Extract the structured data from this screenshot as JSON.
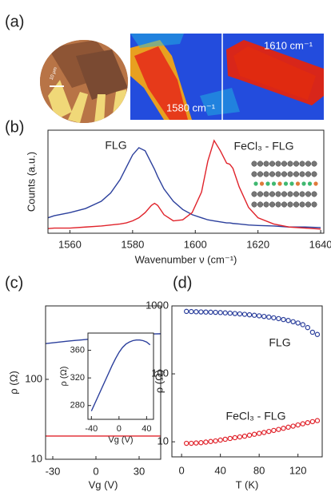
{
  "panel_labels": [
    "(a)",
    "(b)",
    "(c)",
    "(d)"
  ],
  "panel_a": {
    "scale_bar": "10 μm",
    "map_labels": [
      "1580 cm⁻¹",
      "1610 cm⁻¹"
    ]
  },
  "chart_data": [
    {
      "type": "line",
      "xlabel": "Wavenumber ν (cm⁻¹)",
      "ylabel": "Counts (a.u.)",
      "xlim": [
        1553,
        1641
      ],
      "xticks": [
        1560,
        1580,
        1600,
        1620,
        1640
      ],
      "ylim": [
        0,
        1
      ],
      "x": [
        1553,
        1555,
        1560,
        1565,
        1570,
        1573,
        1576,
        1578,
        1580,
        1582,
        1584,
        1586,
        1587,
        1588,
        1590,
        1593,
        1596,
        1599,
        1602,
        1604,
        1606,
        1608,
        1610,
        1611,
        1612,
        1614,
        1617,
        1620,
        1625,
        1630,
        1635,
        1640
      ],
      "series": [
        {
          "name": "FLG",
          "color": "#2b3f9c",
          "values": [
            0.15,
            0.17,
            0.2,
            0.24,
            0.31,
            0.39,
            0.52,
            0.64,
            0.76,
            0.83,
            0.8,
            0.68,
            0.62,
            0.55,
            0.43,
            0.31,
            0.23,
            0.18,
            0.15,
            0.13,
            0.12,
            0.11,
            0.1,
            0.1,
            0.095,
            0.09,
            0.08,
            0.075,
            0.07,
            0.06,
            0.06,
            0.055
          ]
        },
        {
          "name": "FeCl₃ - FLG",
          "color": "#e0232b",
          "values": [
            0.045,
            0.05,
            0.05,
            0.06,
            0.07,
            0.08,
            0.09,
            0.1,
            0.12,
            0.15,
            0.2,
            0.27,
            0.29,
            0.27,
            0.18,
            0.12,
            0.13,
            0.2,
            0.4,
            0.7,
            0.9,
            0.8,
            0.68,
            0.67,
            0.63,
            0.45,
            0.25,
            0.15,
            0.09,
            0.06,
            0.05,
            0.04
          ]
        }
      ]
    },
    {
      "type": "line",
      "log_y": true,
      "xlabel": "Vg (V)",
      "ylabel": "ρ (Ω)",
      "xlim": [
        -35,
        45
      ],
      "xticks": [
        -30,
        0,
        30
      ],
      "ylim": [
        10,
        830
      ],
      "yticks": [
        10,
        100
      ],
      "x": [
        -35,
        -30,
        -25,
        -20,
        -15,
        -10,
        -5,
        0,
        5,
        10,
        15,
        20,
        25,
        30,
        35,
        40,
        45
      ],
      "series": [
        {
          "color": "#2b3f9c",
          "values": [
            280,
            287,
            293,
            300,
            306,
            312,
            318,
            324,
            330,
            336,
            342,
            348,
            354,
            360,
            366,
            370,
            372
          ]
        },
        {
          "color": "#e0232b",
          "values": [
            19.5,
            19.5,
            19.5,
            19.5,
            19.5,
            19.5,
            19.5,
            19.5,
            19.5,
            19.5,
            19.5,
            19.5,
            19.5,
            19.5,
            19.5,
            19.5,
            19.5
          ]
        }
      ]
    },
    {
      "type": "line",
      "xlabel": "Vg (V)",
      "ylabel": "ρ (Ω)",
      "xlim": [
        -45,
        50
      ],
      "xticks": [
        -40,
        0,
        40
      ],
      "ylim": [
        260,
        385
      ],
      "yticks": [
        280,
        320,
        360
      ],
      "x": [
        -40,
        -35,
        -30,
        -25,
        -20,
        -15,
        -10,
        -5,
        0,
        5,
        10,
        15,
        20,
        25,
        30,
        35,
        40,
        45
      ],
      "series": [
        {
          "color": "#2b3f9c",
          "values": [
            272,
            283,
            294,
            305,
            316,
            327,
            338,
            348,
            357,
            364,
            369,
            372,
            374,
            375,
            375,
            374,
            372,
            368
          ]
        }
      ]
    },
    {
      "type": "scatter",
      "log_y": true,
      "xlabel": "T (K)",
      "ylabel": "ρ (Ω)",
      "xlim": [
        -10,
        145
      ],
      "xticks": [
        0,
        40,
        80,
        120
      ],
      "ylim": [
        6,
        1000
      ],
      "yticks": [
        10,
        100,
        1000
      ],
      "x": [
        5,
        10,
        15,
        20,
        25,
        30,
        35,
        40,
        45,
        50,
        55,
        60,
        65,
        70,
        75,
        80,
        85,
        90,
        95,
        100,
        105,
        110,
        115,
        120,
        125,
        130,
        135,
        140
      ],
      "series": [
        {
          "name": "FLG",
          "color": "#2b3f9c",
          "values": [
            830,
            825,
            820,
            815,
            812,
            808,
            804,
            798,
            790,
            782,
            772,
            762,
            752,
            740,
            728,
            715,
            700,
            685,
            668,
            650,
            630,
            610,
            585,
            560,
            530,
            480,
            410,
            380
          ]
        },
        {
          "name": "FeCl₃ - FLG",
          "color": "#e0232b",
          "values": [
            9.5,
            9.5,
            9.6,
            9.7,
            9.9,
            10.1,
            10.3,
            10.6,
            10.9,
            11.2,
            11.5,
            11.8,
            12.1,
            12.5,
            12.9,
            13.3,
            13.7,
            14.2,
            14.7,
            15.2,
            15.8,
            16.4,
            17.0,
            17.7,
            18.4,
            19.1,
            19.8,
            20.5
          ]
        }
      ]
    }
  ]
}
